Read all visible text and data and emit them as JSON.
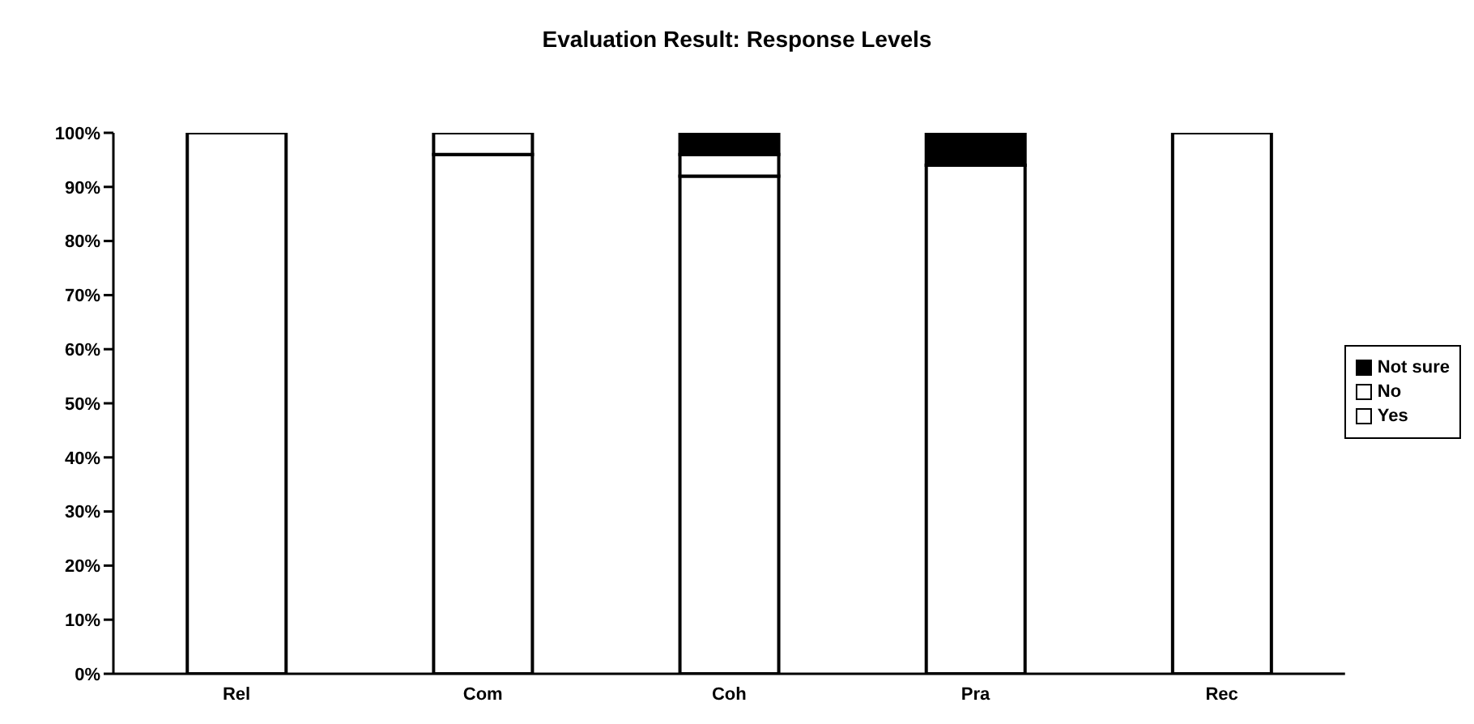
{
  "chart_data": {
    "type": "bar",
    "title": "Evaluation Result: Response Levels",
    "stacked": true,
    "categories": [
      "Rel",
      "Com",
      "Coh",
      "Pra",
      "Rec"
    ],
    "series": [
      {
        "name": "Yes",
        "color": "#ffffff",
        "values": [
          100,
          96,
          92,
          94,
          100
        ]
      },
      {
        "name": "No",
        "color": "#ffffff",
        "values": [
          0,
          4,
          4,
          0,
          0
        ]
      },
      {
        "name": "Not sure",
        "color": "#000000",
        "values": [
          0,
          0,
          4,
          6,
          0
        ]
      }
    ],
    "ylim": [
      0,
      100
    ],
    "yticks": [
      {
        "value": 0,
        "label": "0%"
      },
      {
        "value": 10,
        "label": "10%"
      },
      {
        "value": 20,
        "label": "20%"
      },
      {
        "value": 30,
        "label": "30%"
      },
      {
        "value": 40,
        "label": "40%"
      },
      {
        "value": 50,
        "label": "50%"
      },
      {
        "value": 60,
        "label": "60%"
      },
      {
        "value": 70,
        "label": "70%"
      },
      {
        "value": 80,
        "label": "80%"
      },
      {
        "value": 90,
        "label": "90%"
      },
      {
        "value": 100,
        "label": "100%"
      }
    ],
    "grid": false,
    "legend": "right"
  }
}
